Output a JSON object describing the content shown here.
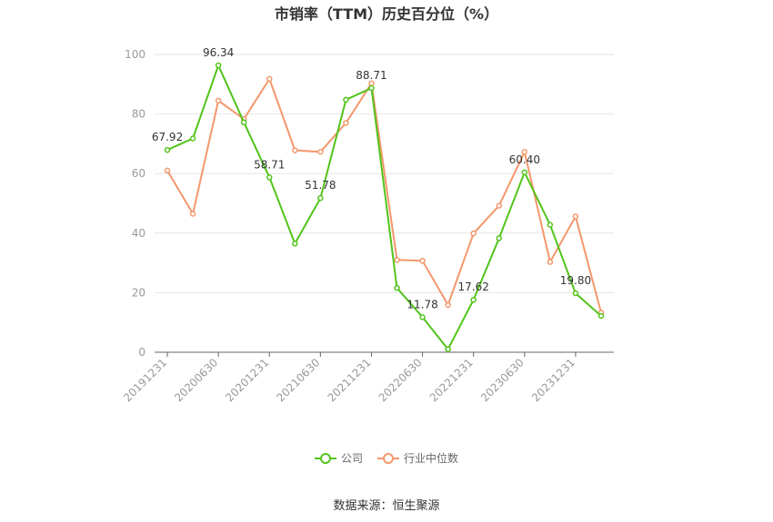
{
  "chart_data": {
    "type": "line",
    "title": "市销率（TTM）历史百分位（%）",
    "x": [
      "20191231",
      "20200331",
      "20200630",
      "20200930",
      "20201231",
      "20210331",
      "20210630",
      "20210930",
      "20211231",
      "20220331",
      "20220630",
      "20220930",
      "20221231",
      "20230331",
      "20230630",
      "20230930",
      "20231231",
      "20240331"
    ],
    "x_tick_labels": [
      "20191231",
      "20200630",
      "20201231",
      "20210630",
      "20211231",
      "20220630",
      "20221231",
      "20230630",
      "20231231"
    ],
    "y_ticks": [
      0,
      20,
      40,
      60,
      80,
      100
    ],
    "ylim": [
      0,
      100
    ],
    "grid": true,
    "legend_position": "bottom",
    "series": [
      {
        "name": "公司",
        "color": "#52c41a",
        "values": [
          67.92,
          71.8,
          96.34,
          77.2,
          58.71,
          36.5,
          51.78,
          84.8,
          88.71,
          21.6,
          11.78,
          1.0,
          17.62,
          38.3,
          60.4,
          42.8,
          19.8,
          12.2
        ],
        "labels": [
          {
            "index": 0,
            "text": "67.92"
          },
          {
            "index": 2,
            "text": "96.34"
          },
          {
            "index": 4,
            "text": "58.71"
          },
          {
            "index": 6,
            "text": "51.78"
          },
          {
            "index": 8,
            "text": "88.71"
          },
          {
            "index": 10,
            "text": "11.78"
          },
          {
            "index": 12,
            "text": "17.62"
          },
          {
            "index": 14,
            "text": "60.40"
          },
          {
            "index": 16,
            "text": "19.80"
          }
        ]
      },
      {
        "name": "行业中位数",
        "color": "#f4976c",
        "values": [
          61.0,
          46.5,
          84.5,
          78.3,
          91.8,
          67.8,
          67.3,
          77.0,
          90.3,
          31.0,
          30.7,
          15.9,
          39.9,
          49.2,
          67.3,
          30.3,
          45.6,
          13.3
        ]
      }
    ]
  },
  "footer": {
    "source": "数据来源：恒生聚源"
  }
}
